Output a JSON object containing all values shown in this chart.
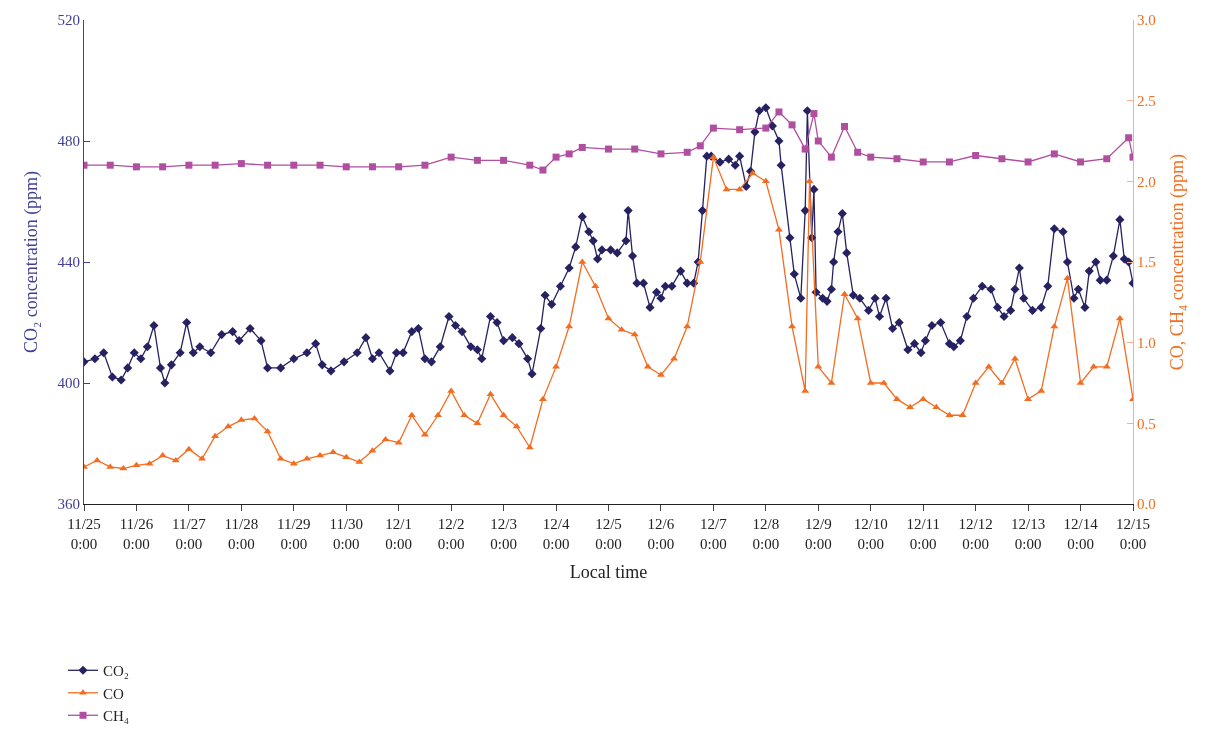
{
  "chart_data": {
    "type": "line",
    "xlabel": "Local time",
    "ylabel": "CO₂ concentration (ppm)",
    "y2label": "CO, CH₄ concentration (ppm)",
    "xlim": [
      "--11-25",
      "--12-15"
    ],
    "xticks": [
      {
        "value": "--11-25",
        "label": "11/25\n0:00"
      },
      {
        "value": "--11-26",
        "label": "11/26\n0:00"
      },
      {
        "value": "--11-27",
        "label": "11/27\n0:00"
      },
      {
        "value": "--11-28",
        "label": "11/28\n0:00"
      },
      {
        "value": "--11-29",
        "label": "11/29\n0:00"
      },
      {
        "value": "--11-30",
        "label": "11/30\n0:00"
      },
      {
        "value": "--12-01",
        "label": "12/1\n0:00"
      },
      {
        "value": "--12-02",
        "label": "12/2\n0:00"
      },
      {
        "value": "--12-03",
        "label": "12/3\n0:00"
      },
      {
        "value": "--12-04",
        "label": "12/4\n0:00"
      },
      {
        "value": "--12-05",
        "label": "12/5\n0:00"
      },
      {
        "value": "--12-06",
        "label": "12/6\n0:00"
      },
      {
        "value": "--12-07",
        "label": "12/7\n0:00"
      },
      {
        "value": "--12-08",
        "label": "12/8\n0:00"
      },
      {
        "value": "--12-09",
        "label": "12/9\n0:00"
      },
      {
        "value": "--12-10",
        "label": "12/10\n0:00"
      },
      {
        "value": "--12-11",
        "label": "12/11\n0:00"
      },
      {
        "value": "--12-12",
        "label": "12/12\n0:00"
      },
      {
        "value": "--12-13",
        "label": "12/13\n0:00"
      },
      {
        "value": "--12-14",
        "label": "12/14\n0:00"
      },
      {
        "value": "--12-15",
        "label": "12/15\n0:00"
      }
    ],
    "ylim": [
      360,
      520
    ],
    "yticks": [
      360,
      400,
      440,
      480,
      520
    ],
    "y2lim": [
      0,
      3
    ],
    "y2ticks": [
      {
        "value": 0,
        "label": "0.0"
      },
      {
        "value": 0.5,
        "label": "0.5"
      },
      {
        "value": 1,
        "label": "1.0"
      },
      {
        "value": 1.5,
        "label": "1.5"
      },
      {
        "value": 2,
        "label": "2.0"
      },
      {
        "value": 2.5,
        "label": "2.5"
      },
      {
        "value": 3,
        "label": "3.0"
      }
    ],
    "legend": "bottom left",
    "line_style": "solid",
    "series": [
      {
        "name": "CO₂",
        "color": "#262262",
        "marker": "diamond",
        "x": [
          "--11-25T00:00",
          "--11-25T05:00",
          "--11-25T09:00",
          "--11-25T13:00",
          "--11-25T17:00",
          "--11-25T20:00",
          "--11-25T23:00",
          "--11-26T02:00",
          "--11-26T05:00",
          "--11-26T08:00",
          "--11-26T11:00",
          "--11-26T13:00",
          "--11-26T16:00",
          "--11-26T20:00",
          "--11-26T23:00",
          "--11-27T02:00",
          "--11-27T05:00",
          "--11-27T10:00",
          "--11-27T15:00",
          "--11-27T20:00",
          "--11-27T23:00",
          "--11-28T04:00",
          "--11-28T09:00",
          "--11-28T12:00",
          "--11-28T18:00",
          "--11-29T00:00",
          "--11-29T06:00",
          "--11-29T10:00",
          "--11-29T13:00",
          "--11-29T17:00",
          "--11-29T23:00",
          "--11-30T05:00",
          "--11-30T09:00",
          "--11-30T12:00",
          "--11-30T15:00",
          "--11-30T20:00",
          "--11-30T23:00",
          "--12-01T02:00",
          "--12-01T06:00",
          "--12-01T09:00",
          "--12-01T12:00",
          "--12-01T15:00",
          "--12-01T19:00",
          "--12-01T23:00",
          "--12-02T02:00",
          "--12-02T05:00",
          "--12-02T09:00",
          "--12-02T12:00",
          "--12-02T14:00",
          "--12-02T18:00",
          "--12-02T21:00",
          "--12-03T00:00",
          "--12-03T04:00",
          "--12-03T07:00",
          "--12-03T11:00",
          "--12-03T13:00",
          "--12-03T17:00",
          "--12-03T19:00",
          "--12-03T22:00",
          "--12-04T02:00",
          "--12-04T06:00",
          "--12-04T09:00",
          "--12-04T12:00",
          "--12-04T15:00",
          "--12-04T17:00",
          "--12-04T19:00",
          "--12-04T21:00",
          "--12-05T01:00",
          "--12-05T04:00",
          "--12-05T08:00",
          "--12-05T09:00",
          "--12-05T11:00",
          "--12-05T13:00",
          "--12-05T16:00",
          "--12-05T19:00",
          "--12-05T22:00",
          "--12-06T00:00",
          "--12-06T02:00",
          "--12-06T05:00",
          "--12-06T09:00",
          "--12-06T12:00",
          "--12-06T15:00",
          "--12-06T17:00",
          "--12-06T19:00",
          "--12-06T21:00",
          "--12-06T23:00",
          "--12-07T03:00",
          "--12-07T07:00",
          "--12-07T10:00",
          "--12-07T12:00",
          "--12-07T15:00",
          "--12-07T17:00",
          "--12-07T19:00",
          "--12-07T21:00",
          "--12-08T00:00",
          "--12-08T03:00",
          "--12-08T06:00",
          "--12-08T07:00",
          "--12-08T11:00",
          "--12-08T13:00",
          "--12-08T16:00",
          "--12-08T18:00",
          "--12-08T19:00",
          "--12-08T21:00",
          "--12-08T22:00",
          "--12-08T23:00",
          "--12-09T02:00",
          "--12-09T04:00",
          "--12-09T06:00",
          "--12-09T07:00",
          "--12-09T09:00",
          "--12-09T11:00",
          "--12-09T13:00",
          "--12-09T16:00",
          "--12-09T19:00",
          "--12-09T23:00",
          "--12-10T02:00",
          "--12-10T04:00",
          "--12-10T07:00",
          "--12-10T10:00",
          "--12-10T13:00",
          "--12-10T17:00",
          "--12-10T20:00",
          "--12-10T23:00",
          "--12-11T01:00",
          "--12-11T04:00",
          "--12-11T08:00",
          "--12-11T12:00",
          "--12-11T14:00",
          "--12-11T17:00",
          "--12-11T20:00",
          "--12-11T23:00",
          "--12-12T03:00",
          "--12-12T07:00",
          "--12-12T10:00",
          "--12-12T13:00",
          "--12-12T16:00",
          "--12-12T18:00",
          "--12-12T20:00",
          "--12-12T22:00",
          "--12-13T02:00",
          "--12-13T06:00",
          "--12-13T09:00",
          "--12-13T12:00",
          "--12-13T16:00",
          "--12-13T18:00",
          "--12-13T21:00",
          "--12-13T23:00",
          "--12-14T02:00",
          "--12-14T04:00",
          "--12-14T07:00",
          "--12-14T09:00",
          "--12-14T12:00",
          "--12-14T15:00",
          "--12-14T18:00",
          "--12-14T20:00",
          "--12-14T22:00",
          "--12-15T00:00"
        ],
        "values": [
          407,
          408,
          410,
          402,
          401,
          405,
          410,
          408,
          412,
          419,
          405,
          400,
          406,
          410,
          420,
          410,
          412,
          410,
          416,
          417,
          414,
          418,
          414,
          405,
          405,
          408,
          410,
          413,
          406,
          404,
          407,
          410,
          415,
          408,
          410,
          404,
          410,
          410,
          417,
          418,
          408,
          407,
          412,
          422,
          419,
          417,
          412,
          411,
          408,
          422,
          420,
          414,
          415,
          413,
          408,
          403,
          418,
          429,
          426,
          432,
          438,
          445,
          455,
          450,
          447,
          441,
          444,
          444,
          443,
          447,
          457,
          442,
          433,
          433,
          425,
          430,
          428,
          432,
          432,
          437,
          433,
          433,
          440,
          457,
          475,
          475,
          473,
          474,
          472,
          475,
          465,
          470,
          483,
          490,
          491,
          485,
          480,
          472,
          448,
          436,
          428,
          457,
          490,
          448,
          464,
          430,
          428,
          427,
          431,
          440,
          450,
          456,
          443,
          429,
          428,
          424,
          428,
          422,
          428,
          418,
          420,
          411,
          413,
          410,
          414,
          419,
          420,
          413,
          412,
          414,
          422,
          428,
          432,
          431,
          425,
          422,
          424,
          431,
          438,
          428,
          424,
          425,
          432,
          451,
          450,
          440,
          428,
          431,
          425,
          437,
          440,
          434,
          434,
          442,
          454,
          441,
          440,
          433
        ]
      },
      {
        "name": "CO",
        "color": "#f26d21",
        "marker": "triangle",
        "axis": "y2",
        "x": [
          "--11-25T00:00",
          "--11-25T06:00",
          "--11-25T12:00",
          "--11-25T18:00",
          "--11-26T00:00",
          "--11-26T06:00",
          "--11-26T12:00",
          "--11-26T18:00",
          "--11-27T00:00",
          "--11-27T06:00",
          "--11-27T12:00",
          "--11-27T18:00",
          "--11-28T00:00",
          "--11-28T06:00",
          "--11-28T12:00",
          "--11-28T18:00",
          "--11-29T00:00",
          "--11-29T06:00",
          "--11-29T12:00",
          "--11-29T18:00",
          "--11-30T00:00",
          "--11-30T06:00",
          "--11-30T12:00",
          "--11-30T18:00",
          "--12-01T00:00",
          "--12-01T06:00",
          "--12-01T12:00",
          "--12-01T18:00",
          "--12-02T00:00",
          "--12-02T06:00",
          "--12-02T12:00",
          "--12-02T18:00",
          "--12-03T00:00",
          "--12-03T06:00",
          "--12-03T12:00",
          "--12-03T18:00",
          "--12-04T00:00",
          "--12-04T06:00",
          "--12-04T12:00",
          "--12-04T18:00",
          "--12-05T00:00",
          "--12-05T06:00",
          "--12-05T12:00",
          "--12-05T18:00",
          "--12-06T00:00",
          "--12-06T06:00",
          "--12-06T12:00",
          "--12-06T18:00",
          "--12-07T00:00",
          "--12-07T06:00",
          "--12-07T12:00",
          "--12-07T18:00",
          "--12-08T00:00",
          "--12-08T06:00",
          "--12-08T12:00",
          "--12-08T18:00",
          "--12-08T20:00",
          "--12-09T00:00",
          "--12-09T06:00",
          "--12-09T12:00",
          "--12-09T18:00",
          "--12-10T00:00",
          "--12-10T06:00",
          "--12-10T12:00",
          "--12-10T18:00",
          "--12-11T00:00",
          "--12-11T06:00",
          "--12-11T12:00",
          "--12-11T18:00",
          "--12-12T00:00",
          "--12-12T06:00",
          "--12-12T12:00",
          "--12-12T18:00",
          "--12-13T00:00",
          "--12-13T06:00",
          "--12-13T12:00",
          "--12-13T18:00",
          "--12-14T00:00",
          "--12-14T06:00",
          "--12-14T12:00",
          "--12-14T18:00",
          "--12-15T00:00"
        ],
        "values": [
          0.23,
          0.27,
          0.23,
          0.22,
          0.24,
          0.25,
          0.3,
          0.27,
          0.34,
          0.28,
          0.42,
          0.48,
          0.52,
          0.53,
          0.45,
          0.28,
          0.25,
          0.28,
          0.3,
          0.32,
          0.29,
          0.26,
          0.33,
          0.4,
          0.38,
          0.55,
          0.43,
          0.55,
          0.7,
          0.55,
          0.5,
          0.68,
          0.55,
          0.48,
          0.35,
          0.65,
          0.85,
          1.1,
          1.5,
          1.35,
          1.15,
          1.08,
          1.05,
          0.85,
          0.8,
          0.9,
          1.1,
          1.5,
          2.15,
          1.95,
          1.95,
          2.05,
          2,
          1.7,
          1.1,
          0.7,
          2,
          0.85,
          0.75,
          1.3,
          1.15,
          0.75,
          0.75,
          0.65,
          0.6,
          0.65,
          0.6,
          0.55,
          0.55,
          0.75,
          0.85,
          0.75,
          0.9,
          0.65,
          0.7,
          1.1,
          1.4,
          0.75,
          0.85,
          0.85,
          1.15,
          0.65
        ]
      },
      {
        "name": "CH₄",
        "color": "#b04f9f",
        "marker": "square",
        "axis": "y2",
        "x": [
          "--11-25T00:00",
          "--11-25T12:00",
          "--11-26T00:00",
          "--11-26T12:00",
          "--11-27T00:00",
          "--11-27T12:00",
          "--11-28T00:00",
          "--11-28T12:00",
          "--11-29T00:00",
          "--11-29T12:00",
          "--11-30T00:00",
          "--11-30T12:00",
          "--12-01T00:00",
          "--12-01T12:00",
          "--12-02T00:00",
          "--12-02T12:00",
          "--12-03T00:00",
          "--12-03T12:00",
          "--12-03T18:00",
          "--12-04T00:00",
          "--12-04T06:00",
          "--12-04T12:00",
          "--12-05T00:00",
          "--12-05T12:00",
          "--12-06T00:00",
          "--12-06T12:00",
          "--12-06T18:00",
          "--12-07T00:00",
          "--12-07T12:00",
          "--12-08T00:00",
          "--12-08T06:00",
          "--12-08T12:00",
          "--12-08T18:00",
          "--12-08T22:00",
          "--12-09T00:00",
          "--12-09T06:00",
          "--12-09T12:00",
          "--12-09T18:00",
          "--12-10T00:00",
          "--12-10T12:00",
          "--12-11T00:00",
          "--12-11T12:00",
          "--12-12T00:00",
          "--12-12T12:00",
          "--12-13T00:00",
          "--12-13T12:00",
          "--12-14T00:00",
          "--12-14T12:00",
          "--12-14T22:00",
          "--12-15T00:00"
        ],
        "values": [
          2.1,
          2.1,
          2.09,
          2.09,
          2.1,
          2.1,
          2.11,
          2.1,
          2.1,
          2.1,
          2.09,
          2.09,
          2.09,
          2.1,
          2.15,
          2.13,
          2.13,
          2.1,
          2.07,
          2.15,
          2.17,
          2.21,
          2.2,
          2.2,
          2.17,
          2.18,
          2.22,
          2.33,
          2.32,
          2.33,
          2.43,
          2.35,
          2.2,
          2.42,
          2.25,
          2.15,
          2.34,
          2.18,
          2.15,
          2.14,
          2.12,
          2.12,
          2.16,
          2.14,
          2.12,
          2.17,
          2.12,
          2.14,
          2.27,
          2.15
        ]
      }
    ]
  }
}
